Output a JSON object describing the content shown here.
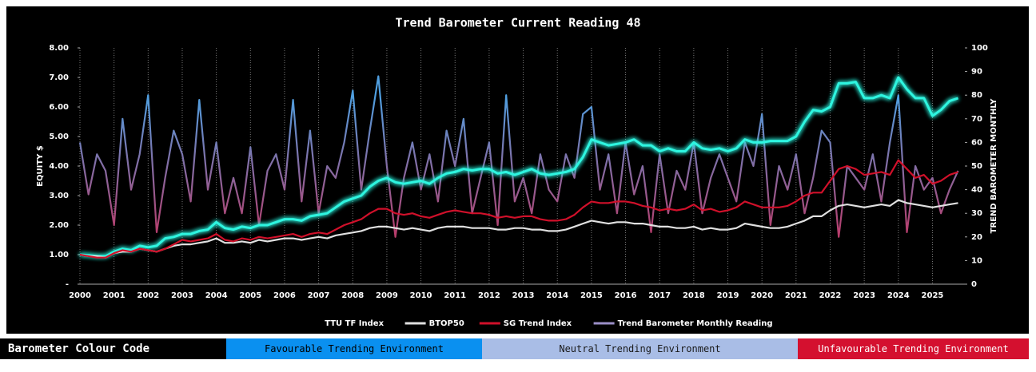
{
  "chart_data": {
    "type": "line",
    "title": "Trend Barometer  Current Reading 48",
    "y_label": "EQUITY $",
    "y2_label": "TREND BAROMETER MONTHLY",
    "x": [
      2000,
      2000.25,
      2000.5,
      2000.75,
      2001,
      2001.25,
      2001.5,
      2001.75,
      2002,
      2002.25,
      2002.5,
      2002.75,
      2003,
      2003.25,
      2003.5,
      2003.75,
      2004,
      2004.25,
      2004.5,
      2004.75,
      2005,
      2005.25,
      2005.5,
      2005.75,
      2006,
      2006.25,
      2006.5,
      2006.75,
      2007,
      2007.25,
      2007.5,
      2007.75,
      2008,
      2008.25,
      2008.5,
      2008.75,
      2009,
      2009.25,
      2009.5,
      2009.75,
      2010,
      2010.25,
      2010.5,
      2010.75,
      2011,
      2011.25,
      2011.5,
      2011.75,
      2012,
      2012.25,
      2012.5,
      2012.75,
      2013,
      2013.25,
      2013.5,
      2013.75,
      2014,
      2014.25,
      2014.5,
      2014.75,
      2015,
      2015.25,
      2015.5,
      2015.75,
      2016,
      2016.25,
      2016.5,
      2016.75,
      2017,
      2017.25,
      2017.5,
      2017.75,
      2018,
      2018.25,
      2018.5,
      2018.75,
      2019,
      2019.25,
      2019.5,
      2019.75,
      2020,
      2020.25,
      2020.5,
      2020.75,
      2021,
      2021.25,
      2021.5,
      2021.75,
      2022,
      2022.25,
      2022.5,
      2022.75,
      2023,
      2023.25,
      2023.5,
      2023.75,
      2024,
      2024.25,
      2024.5,
      2024.75,
      2025,
      2025.25,
      2025.5,
      2025.75
    ],
    "xlim": [
      2000,
      2025.95
    ],
    "xticks": [
      2000,
      2001,
      2002,
      2003,
      2004,
      2005,
      2006,
      2007,
      2008,
      2009,
      2010,
      2011,
      2012,
      2013,
      2014,
      2015,
      2016,
      2017,
      2018,
      2019,
      2020,
      2021,
      2022,
      2023,
      2024,
      2025
    ],
    "ylim": [
      0,
      8
    ],
    "yticks": [
      {
        "value": 0,
        "label": "-"
      },
      {
        "value": 1,
        "label": "1.00"
      },
      {
        "value": 2,
        "label": "2.00"
      },
      {
        "value": 3,
        "label": "3.00"
      },
      {
        "value": 4,
        "label": "4.00"
      },
      {
        "value": 5,
        "label": "5.00"
      },
      {
        "value": 6,
        "label": "6.00"
      },
      {
        "value": 7,
        "label": "7.00"
      },
      {
        "value": 8,
        "label": "8.00"
      }
    ],
    "y2lim": [
      0,
      100
    ],
    "y2ticks": [
      0,
      10,
      20,
      30,
      40,
      50,
      60,
      70,
      80,
      90,
      100
    ],
    "grid": "x",
    "legend": "bottom",
    "series": [
      {
        "name": "TTU TF Index",
        "color": "#2ef5e0",
        "glow": true,
        "values": [
          1.0,
          0.98,
          0.95,
          0.95,
          1.1,
          1.2,
          1.15,
          1.3,
          1.25,
          1.3,
          1.55,
          1.6,
          1.7,
          1.7,
          1.8,
          1.85,
          2.1,
          1.9,
          1.85,
          1.95,
          1.9,
          2.0,
          2.0,
          2.1,
          2.2,
          2.2,
          2.15,
          2.3,
          2.35,
          2.4,
          2.6,
          2.8,
          2.9,
          3.0,
          3.3,
          3.5,
          3.6,
          3.45,
          3.4,
          3.45,
          3.5,
          3.4,
          3.6,
          3.75,
          3.8,
          3.9,
          3.85,
          3.9,
          3.9,
          3.75,
          3.8,
          3.7,
          3.8,
          3.9,
          3.75,
          3.7,
          3.75,
          3.8,
          3.9,
          4.3,
          4.9,
          4.8,
          4.7,
          4.75,
          4.8,
          4.9,
          4.7,
          4.7,
          4.5,
          4.6,
          4.5,
          4.5,
          4.8,
          4.6,
          4.55,
          4.6,
          4.5,
          4.6,
          4.9,
          4.8,
          4.8,
          4.85,
          4.85,
          4.85,
          5.0,
          5.5,
          5.9,
          5.85,
          6.0,
          6.8,
          6.8,
          6.85,
          6.3,
          6.3,
          6.4,
          6.3,
          7.0,
          6.6,
          6.3,
          6.3,
          5.7,
          5.9,
          6.2,
          6.3
        ]
      },
      {
        "name": "BTOP50",
        "color": "#e0e0e0",
        "values": [
          1.0,
          0.95,
          0.95,
          0.9,
          1.05,
          1.1,
          1.1,
          1.2,
          1.15,
          1.1,
          1.2,
          1.3,
          1.35,
          1.35,
          1.4,
          1.45,
          1.55,
          1.4,
          1.4,
          1.45,
          1.4,
          1.5,
          1.45,
          1.5,
          1.55,
          1.55,
          1.5,
          1.55,
          1.6,
          1.55,
          1.65,
          1.7,
          1.75,
          1.8,
          1.9,
          1.95,
          1.95,
          1.9,
          1.85,
          1.9,
          1.85,
          1.8,
          1.9,
          1.95,
          1.95,
          1.95,
          1.9,
          1.9,
          1.9,
          1.85,
          1.85,
          1.9,
          1.9,
          1.85,
          1.85,
          1.8,
          1.8,
          1.85,
          1.95,
          2.05,
          2.15,
          2.1,
          2.05,
          2.1,
          2.1,
          2.05,
          2.05,
          2.0,
          1.95,
          1.95,
          1.9,
          1.9,
          1.95,
          1.85,
          1.9,
          1.85,
          1.85,
          1.9,
          2.05,
          2.0,
          1.95,
          1.9,
          1.9,
          1.95,
          2.05,
          2.15,
          2.3,
          2.3,
          2.5,
          2.65,
          2.7,
          2.65,
          2.6,
          2.65,
          2.7,
          2.65,
          2.85,
          2.75,
          2.7,
          2.65,
          2.6,
          2.65,
          2.7,
          2.75
        ]
      },
      {
        "name": "SG Trend Index",
        "color": "#d0102a",
        "values": [
          1.0,
          0.95,
          0.9,
          0.9,
          1.05,
          1.15,
          1.1,
          1.2,
          1.15,
          1.1,
          1.2,
          1.35,
          1.5,
          1.45,
          1.5,
          1.55,
          1.7,
          1.5,
          1.45,
          1.55,
          1.5,
          1.6,
          1.55,
          1.6,
          1.65,
          1.7,
          1.6,
          1.7,
          1.75,
          1.7,
          1.85,
          2.0,
          2.1,
          2.2,
          2.4,
          2.55,
          2.55,
          2.4,
          2.35,
          2.4,
          2.3,
          2.25,
          2.35,
          2.45,
          2.5,
          2.45,
          2.4,
          2.4,
          2.35,
          2.25,
          2.3,
          2.25,
          2.3,
          2.3,
          2.2,
          2.15,
          2.15,
          2.2,
          2.35,
          2.6,
          2.8,
          2.75,
          2.75,
          2.8,
          2.8,
          2.75,
          2.65,
          2.6,
          2.5,
          2.55,
          2.5,
          2.55,
          2.7,
          2.5,
          2.55,
          2.45,
          2.5,
          2.6,
          2.8,
          2.7,
          2.6,
          2.6,
          2.6,
          2.65,
          2.8,
          3.0,
          3.1,
          3.1,
          3.5,
          3.9,
          4.0,
          3.9,
          3.7,
          3.75,
          3.8,
          3.7,
          4.2,
          3.9,
          3.6,
          3.7,
          3.4,
          3.5,
          3.7,
          3.8
        ]
      },
      {
        "name": "Trend Barometer Monthly Reading",
        "color": "#9b8fc8",
        "axis": "y2",
        "gradient": [
          "#4f9fe0",
          "#c4305c"
        ],
        "values": [
          60,
          38,
          55,
          48,
          25,
          70,
          40,
          55,
          80,
          22,
          45,
          65,
          55,
          35,
          78,
          40,
          60,
          30,
          45,
          30,
          58,
          25,
          48,
          55,
          40,
          78,
          35,
          65,
          30,
          50,
          45,
          60,
          82,
          40,
          65,
          88,
          50,
          20,
          45,
          60,
          40,
          55,
          35,
          65,
          50,
          70,
          30,
          45,
          60,
          25,
          80,
          35,
          45,
          30,
          55,
          40,
          35,
          55,
          45,
          72,
          75,
          40,
          55,
          30,
          60,
          38,
          50,
          22,
          55,
          30,
          48,
          40,
          60,
          30,
          45,
          55,
          45,
          35,
          60,
          50,
          72,
          25,
          50,
          40,
          55,
          30,
          45,
          65,
          60,
          20,
          50,
          45,
          40,
          55,
          35,
          60,
          80,
          22,
          50,
          40,
          45,
          30,
          40,
          48
        ]
      }
    ]
  },
  "colour_code": {
    "title": "Barometer Colour Code",
    "items": [
      {
        "label": "Favourable Trending Environment",
        "color": "#0a90f0",
        "text_color": "#000000"
      },
      {
        "label": "Neutral Trending Environment",
        "color": "#a9bde6",
        "text_color": "#1a1a1a"
      },
      {
        "label": "Unfavourable Trending Environment",
        "color": "#d4102f",
        "text_color": "#ffffff"
      }
    ]
  }
}
